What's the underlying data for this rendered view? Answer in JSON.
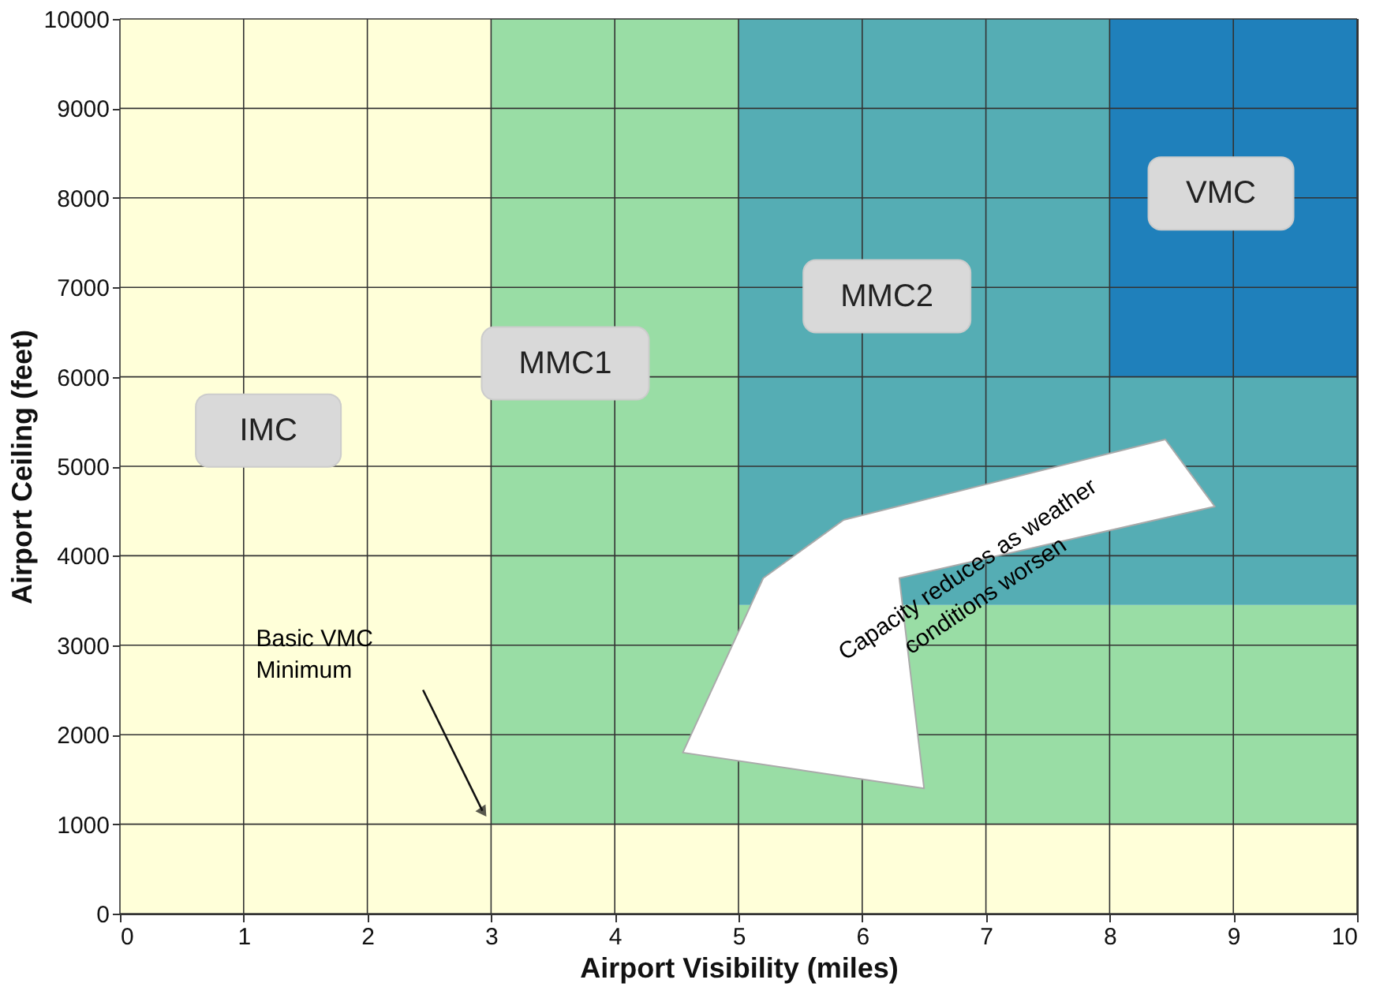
{
  "chart_data": {
    "type": "area",
    "stacked": true,
    "xlabel": "Airport Visibility (miles)",
    "ylabel": "Airport Ceiling (feet)",
    "xlim": [
      0,
      10
    ],
    "xticks": [
      0,
      1,
      2,
      3,
      4,
      5,
      6,
      7,
      8,
      9,
      10
    ],
    "ylim": [
      0,
      10000
    ],
    "yticks": [
      0,
      1000,
      2000,
      3000,
      4000,
      5000,
      6000,
      7000,
      8000,
      9000,
      10000
    ],
    "grid": true,
    "x": [
      0,
      3,
      3,
      5,
      5,
      8,
      8,
      10
    ],
    "series": [
      {
        "name": "IMC",
        "color": "#ffffd9",
        "values": [
          10000,
          10000,
          1000,
          1000,
          1000,
          1000,
          1000,
          1000
        ]
      },
      {
        "name": "MMC1",
        "color": "#99dda5",
        "values": [
          0,
          0,
          9000,
          9000,
          2450,
          2450,
          2450,
          2450
        ]
      },
      {
        "name": "MMC2",
        "color": "#55adb4",
        "values": [
          0,
          0,
          0,
          0,
          6550,
          6550,
          2550,
          2550
        ]
      },
      {
        "name": "VMC",
        "color": "#1f80bb",
        "values": [
          0,
          0,
          0,
          0,
          0,
          0,
          4000,
          4000
        ]
      }
    ],
    "annotations": [
      "Basic VMC Minimum",
      "Capacity reduces as weather conditions worsen"
    ]
  }
}
